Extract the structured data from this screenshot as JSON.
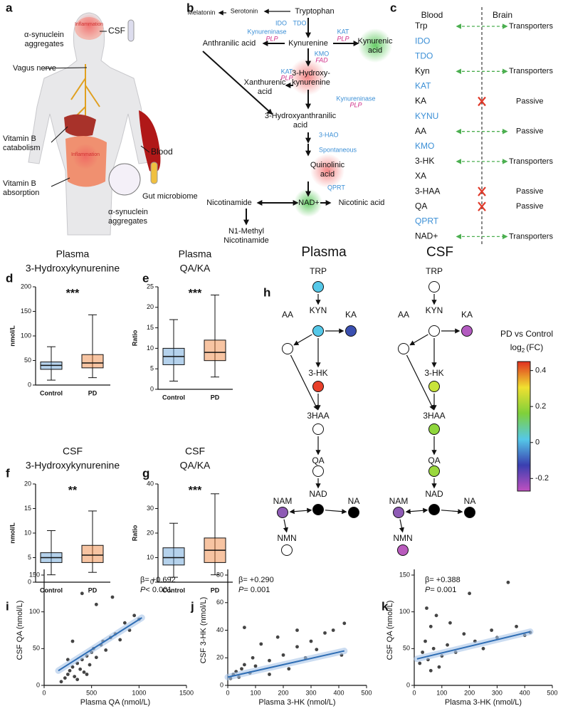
{
  "panel_labels": [
    "a",
    "b",
    "c",
    "d",
    "e",
    "f",
    "g",
    "h",
    "i",
    "j",
    "k"
  ],
  "illustration": {
    "csf": "CSF",
    "inflammation": "Inflammation",
    "synuclein": [
      "α-synuclein",
      "aggregates"
    ],
    "vagus": "Vagus nerve",
    "catabolism": [
      "Vitamin B",
      "catabolism"
    ],
    "blood": "Blood",
    "absorption": [
      "Vitamin B",
      "absorption"
    ],
    "microbiome": "Gut microbiome"
  },
  "pathway": {
    "melatonin": "Melatonin",
    "serotonin": "Serotonin",
    "tryptophan": "Tryptophan",
    "ido": "IDO",
    "tdo": "TDO",
    "kynureninase": "Kynureninase",
    "plp": "PLP",
    "kat": "KAT",
    "anthranilic": "Anthranilic acid",
    "kynurenine": "Kynurenine",
    "kynurenic": [
      "Kynurenic",
      "acid"
    ],
    "kmo": "KMO",
    "fad": "FAD",
    "xanthurenic": [
      "Xanthurenic",
      "acid"
    ],
    "hk": [
      "3-Hydroxy-",
      "kynurenine"
    ],
    "haa": [
      "3-Hydroxyanthranilic",
      "acid"
    ],
    "hao": "3-HAO",
    "spontaneous": "Spontaneous",
    "quinolinic": [
      "Quinolinic",
      "acid"
    ],
    "qprt": "QPRT",
    "nicotinamide": "Nicotinamide",
    "nad": "NAD+",
    "nicotinic": "Nicotinic acid",
    "methyl": [
      "N1-Methyl",
      "Nicotinamide"
    ]
  },
  "transport": {
    "headers": [
      "Blood",
      "Brain"
    ],
    "rows": [
      {
        "name": "Trp",
        "color": "#111111",
        "link": "arrow",
        "label": "Transporters"
      },
      {
        "name": "IDO",
        "color": "#3b8fd6"
      },
      {
        "name": "TDO",
        "color": "#3b8fd6"
      },
      {
        "name": "Kyn",
        "color": "#111111",
        "link": "arrow",
        "label": "Transporters"
      },
      {
        "name": "KAT",
        "color": "#3b8fd6"
      },
      {
        "name": "KA",
        "color": "#111111",
        "link": "cross",
        "label": "Passive"
      },
      {
        "name": "KYNU",
        "color": "#3b8fd6"
      },
      {
        "name": "AA",
        "color": "#111111",
        "link": "arrow",
        "label": "Passive"
      },
      {
        "name": "KMO",
        "color": "#3b8fd6"
      },
      {
        "name": "3-HK",
        "color": "#111111",
        "link": "arrow",
        "label": "Transporters"
      },
      {
        "name": "XA",
        "color": "#111111"
      },
      {
        "name": "3-HAA",
        "color": "#111111",
        "link": "cross",
        "label": "Passive"
      },
      {
        "name": "QA",
        "color": "#111111",
        "link": "cross",
        "label": "Passive"
      },
      {
        "name": "QPRT",
        "color": "#3b8fd6"
      },
      {
        "name": "NAD+",
        "color": "#111111",
        "link": "arrow",
        "label": "Transporters"
      }
    ]
  },
  "chart_data": [
    {
      "type": "box",
      "title": [
        "Plasma",
        "3-Hydroxykynurenine"
      ],
      "ylabel": "nmol/L",
      "categories": [
        "Control",
        "PD"
      ],
      "colors": [
        "#5b9bd5",
        "#ed7d31"
      ],
      "annotation": "***",
      "ylim": [
        0,
        200
      ],
      "yticks": [
        0,
        50,
        100,
        150,
        200
      ],
      "stats": [
        {
          "min": 10,
          "q1": 32,
          "median": 40,
          "q3": 47,
          "max": 78
        },
        {
          "min": 15,
          "q1": 35,
          "median": 45,
          "q3": 62,
          "max": 143
        }
      ]
    },
    {
      "type": "box",
      "title": [
        "Plasma",
        "QA/KA"
      ],
      "ylabel": "Ratio",
      "categories": [
        "Control",
        "PD"
      ],
      "colors": [
        "#5b9bd5",
        "#ed7d31"
      ],
      "annotation": "***",
      "ylim": [
        0,
        25
      ],
      "yticks": [
        0,
        5,
        10,
        15,
        20,
        25
      ],
      "stats": [
        {
          "min": 2,
          "q1": 6,
          "median": 8,
          "q3": 10,
          "max": 17
        },
        {
          "min": 3,
          "q1": 7,
          "median": 9,
          "q3": 12,
          "max": 23
        }
      ]
    },
    {
      "type": "box",
      "title": [
        "CSF",
        "3-Hydroxykynurenine"
      ],
      "ylabel": "nmol/L",
      "categories": [
        "Control",
        "PD"
      ],
      "colors": [
        "#5b9bd5",
        "#ed7d31"
      ],
      "annotation": "**",
      "ylim": [
        0,
        20
      ],
      "yticks": [
        0,
        5,
        10,
        15,
        20
      ],
      "stats": [
        {
          "min": 1.5,
          "q1": 4,
          "median": 5,
          "q3": 6,
          "max": 10.5
        },
        {
          "min": 2,
          "q1": 4,
          "median": 5.5,
          "q3": 7.5,
          "max": 14.5
        }
      ]
    },
    {
      "type": "box",
      "title": [
        "CSF",
        "QA/KA"
      ],
      "ylabel": "Ratio",
      "categories": [
        "Control",
        "PD"
      ],
      "colors": [
        "#5b9bd5",
        "#ed7d31"
      ],
      "annotation": "***",
      "ylim": [
        0,
        40
      ],
      "yticks": [
        0,
        10,
        20,
        30,
        40
      ],
      "stats": [
        {
          "min": 2,
          "q1": 7,
          "median": 10,
          "q3": 14,
          "max": 24
        },
        {
          "min": 3,
          "q1": 8,
          "median": 13,
          "q3": 18,
          "max": 36
        }
      ]
    },
    {
      "type": "scatter",
      "xlabel": "Plasma QA (nmol/L)",
      "ylabel": "CSF QA (nmol/L)",
      "beta": "β= +0.692",
      "p_label": "P",
      "p_value": "< 0.001",
      "color": "#444444",
      "fit_color": "#2e6db4",
      "xlim": [
        0,
        1500
      ],
      "xticks": [
        0,
        500,
        1000,
        1500
      ],
      "ylim": [
        0,
        150
      ],
      "yticks": [
        0,
        50,
        100,
        150
      ],
      "x": [
        180,
        220,
        250,
        270,
        300,
        320,
        350,
        380,
        400,
        420,
        450,
        480,
        500,
        520,
        550,
        600,
        620,
        650,
        700,
        720,
        750,
        800,
        850,
        900,
        950,
        1000,
        400,
        550,
        300,
        250,
        350,
        450
      ],
      "y": [
        5,
        10,
        15,
        20,
        25,
        12,
        30,
        22,
        35,
        18,
        40,
        28,
        45,
        50,
        38,
        55,
        60,
        48,
        65,
        120,
        70,
        62,
        85,
        75,
        95,
        90,
        125,
        110,
        60,
        35,
        8,
        15
      ],
      "fit": {
        "x": [
          150,
          1030
        ],
        "y": [
          20,
          92
        ]
      }
    },
    {
      "type": "scatter",
      "xlabel": "Plasma 3-HK (nmol/L)",
      "ylabel": "CSF 3-HK (nmol/L)",
      "beta": "β= +0.290",
      "p_label": "P",
      "p_value": "= 0.001",
      "color": "#444444",
      "fit_color": "#2e6db4",
      "xlim": [
        0,
        500
      ],
      "xticks": [
        0,
        100,
        200,
        300,
        400,
        500
      ],
      "ylim": [
        0,
        80
      ],
      "yticks": [
        0,
        20,
        40,
        60,
        80
      ],
      "x": [
        10,
        20,
        30,
        40,
        50,
        60,
        80,
        100,
        120,
        150,
        180,
        200,
        220,
        250,
        280,
        300,
        320,
        350,
        380,
        410,
        420,
        60,
        150,
        250,
        90
      ],
      "y": [
        5,
        8,
        10,
        6,
        12,
        15,
        9,
        14,
        30,
        18,
        35,
        22,
        12,
        28,
        20,
        32,
        26,
        38,
        40,
        22,
        45,
        42,
        8,
        40,
        20
      ],
      "fit": {
        "x": [
          0,
          420
        ],
        "y": [
          6,
          25
        ]
      }
    },
    {
      "type": "scatter",
      "xlabel": "Plasma 3-HK (nmol/L)",
      "ylabel": "CSF QA (nmol/L)",
      "beta": "β= +0.388",
      "p_label": "P",
      "p_value": "= 0.001",
      "color": "#444444",
      "fit_color": "#2e6db4",
      "xlim": [
        0,
        500
      ],
      "xticks": [
        0,
        100,
        200,
        300,
        400,
        500
      ],
      "ylim": [
        0,
        150
      ],
      "yticks": [
        0,
        50,
        100,
        150
      ],
      "x": [
        20,
        30,
        40,
        50,
        60,
        70,
        80,
        100,
        120,
        150,
        180,
        200,
        220,
        250,
        280,
        300,
        340,
        370,
        400,
        420,
        45,
        90,
        60,
        130
      ],
      "y": [
        30,
        45,
        60,
        35,
        80,
        50,
        95,
        40,
        55,
        45,
        70,
        125,
        60,
        50,
        75,
        65,
        140,
        80,
        68,
        72,
        105,
        25,
        20,
        85
      ],
      "fit": {
        "x": [
          10,
          420
        ],
        "y": [
          36,
          73
        ]
      }
    }
  ],
  "network": {
    "panels": [
      {
        "title": "Plasma",
        "nodes": [
          {
            "label": "TRP",
            "color": "#55c8e8"
          },
          {
            "label": "KYN",
            "color": "#55c8e8"
          },
          {
            "label": "KA",
            "color": "#3a4fb0"
          },
          {
            "label": "AA",
            "color": "#ffffff"
          },
          {
            "label": "3-HK",
            "color": "#e8402a"
          },
          {
            "label": "3HAA",
            "color": "#ffffff"
          },
          {
            "label": "QA",
            "color": "#ffffff"
          },
          {
            "label": "NAD",
            "color": "#000000"
          },
          {
            "label": "NAM",
            "color": "#8e5bb5"
          },
          {
            "label": "NA",
            "color": "#000000"
          },
          {
            "label": "NMN",
            "color": "#ffffff"
          }
        ]
      },
      {
        "title": "CSF",
        "nodes": [
          {
            "label": "TRP",
            "color": "#ffffff"
          },
          {
            "label": "KYN",
            "color": "#ffffff"
          },
          {
            "label": "KA",
            "color": "#b35bc0"
          },
          {
            "label": "AA",
            "color": "#ffffff"
          },
          {
            "label": "3-HK",
            "color": "#c8e43a"
          },
          {
            "label": "3HAA",
            "color": "#8fd63c"
          },
          {
            "label": "QA",
            "color": "#9ad83e"
          },
          {
            "label": "NAD",
            "color": "#000000"
          },
          {
            "label": "NAM",
            "color": "#8e5bb5"
          },
          {
            "label": "NA",
            "color": "#000000"
          },
          {
            "label": "NMN",
            "color": "#b95bbd"
          }
        ]
      }
    ],
    "colorbar": {
      "title": "PD vs Control",
      "unit": [
        "log",
        "2",
        "(FC)"
      ],
      "lim": [
        -0.27,
        0.45
      ],
      "ticks": [
        -0.2,
        0,
        0.2,
        0.4
      ],
      "colors": [
        "#c050c0",
        "#3a3fb0",
        "#55c8e8",
        "#7fd03a",
        "#f0e030",
        "#e03020"
      ]
    }
  }
}
